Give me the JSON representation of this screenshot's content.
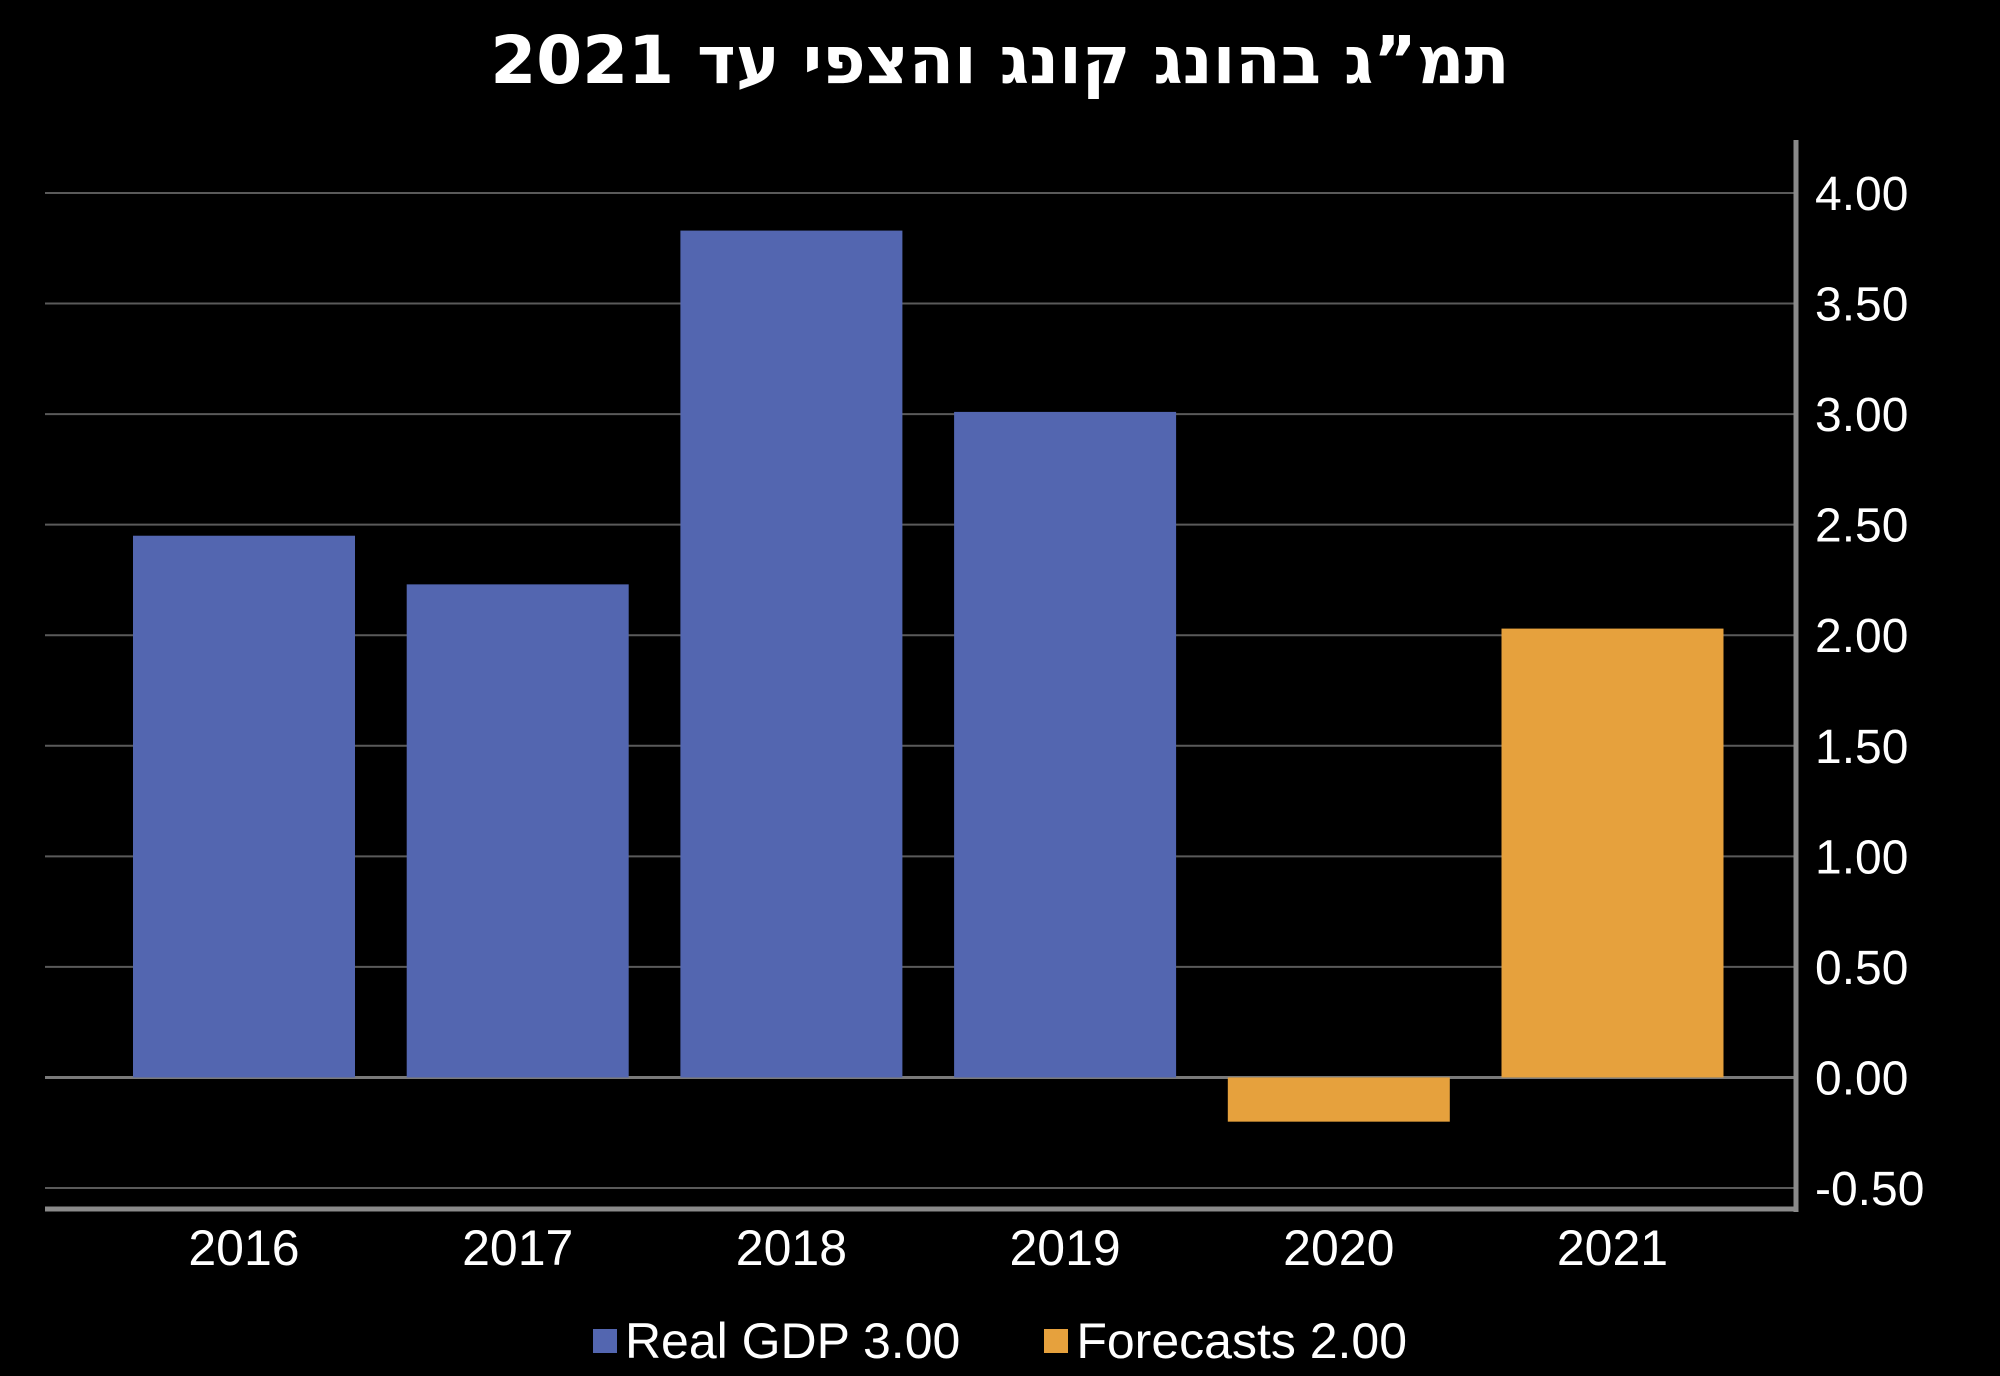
{
  "chart_data": {
    "type": "bar",
    "title": "תמ”ג בהונג קונג והצפי עד 2021",
    "xlabel": "",
    "ylabel": "",
    "categories": [
      "2016",
      "2017",
      "2018",
      "2019",
      "2020",
      "2021"
    ],
    "series": [
      {
        "name": "Real GDP 3.00",
        "values": [
          2.45,
          2.23,
          3.83,
          3.01,
          null,
          null
        ],
        "color": "#5366B0"
      },
      {
        "name": "Forecasts 2.00",
        "values": [
          null,
          null,
          null,
          null,
          -0.2,
          2.03
        ],
        "color": "#E6A13D"
      }
    ],
    "ylim": [
      -0.5,
      4.0
    ],
    "yticks": [
      "-0.50",
      "0.00",
      "0.50",
      "1.00",
      "1.50",
      "2.00",
      "2.50",
      "3.00",
      "3.50",
      "4.00"
    ],
    "y_axis_side": "right",
    "grid": true,
    "legend": "bottom"
  }
}
